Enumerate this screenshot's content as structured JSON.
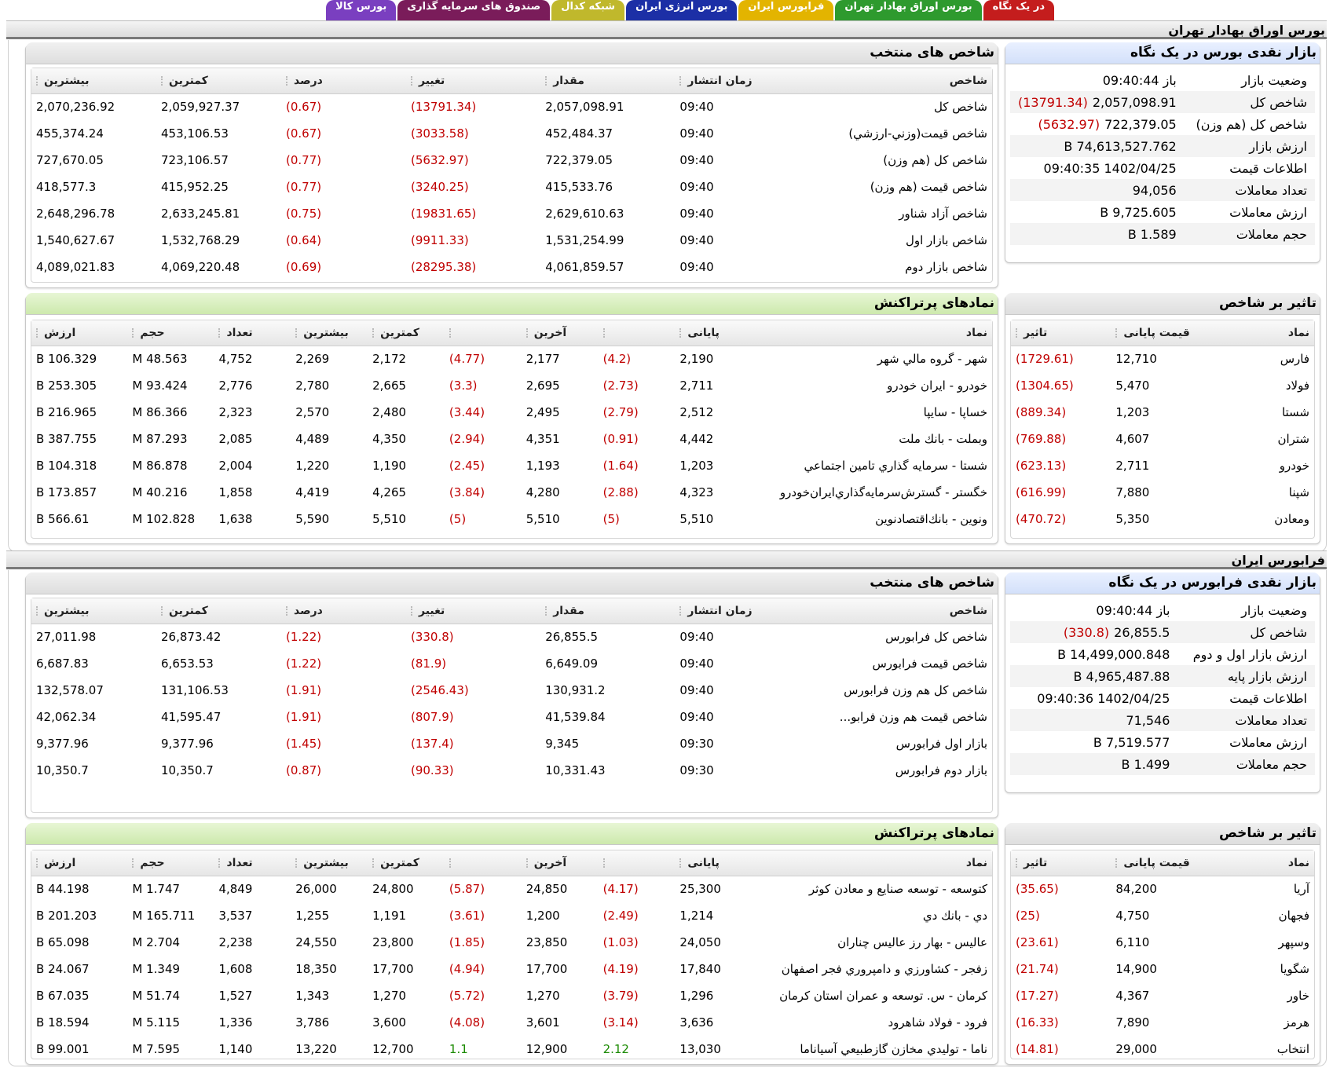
{
  "tabs": [
    {
      "label": "در یک نگاه",
      "color": "#c41d1d"
    },
    {
      "label": "بورس اوراق بهادار تهران",
      "color": "#2e9a2e"
    },
    {
      "label": "فرابورس ایران",
      "color": "#e3b400"
    },
    {
      "label": "بورس انرژی ایران",
      "color": "#1c2fa6"
    },
    {
      "label": "شبکه کدال",
      "color": "#c0b82c"
    },
    {
      "label": "صندوق های سرمایه گذاری",
      "color": "#7a1c5a"
    },
    {
      "label": "بورس کالا",
      "color": "#7a3fc0"
    }
  ],
  "tse": {
    "section_title": "بورس اوراق بهادار تهران",
    "glance": {
      "title": "بازار نقدی بورس در یک نگاه",
      "rows": [
        {
          "k": "وضعیت بازار",
          "v": "باز 09:40:44"
        },
        {
          "k": "شاخص کل",
          "v": "2,057,098.91",
          "n": "(13791.34)"
        },
        {
          "k": "شاخص کل (هم وزن)",
          "v": "722,379.05",
          "n": "(5632.97)"
        },
        {
          "k": "ارزش بازار",
          "v": "74,613,527.762 B"
        },
        {
          "k": "اطلاعات قیمت",
          "v": "1402/04/25 09:40:35"
        },
        {
          "k": "تعداد معاملات",
          "v": "94,056"
        },
        {
          "k": "ارزش معاملات",
          "v": "9,725.605 B"
        },
        {
          "k": "حجم معاملات",
          "v": "1.589 B"
        }
      ]
    },
    "indices": {
      "title": "شاخص های منتخب",
      "headers": [
        "شاخص",
        "زمان انتشار",
        "مقدار",
        "تغییر",
        "درصد",
        "کمترین",
        "بیشترین"
      ],
      "rows": [
        [
          "شاخص کل",
          "09:40",
          "2,057,098.91",
          "(13791.34)",
          "(0.67)",
          "2,059,927.37",
          "2,070,236.92"
        ],
        [
          "شاخص قيمت(وزني-ارزشي)",
          "09:40",
          "452,484.37",
          "(3033.58)",
          "(0.67)",
          "453,106.53",
          "455,374.24"
        ],
        [
          "شاخص کل (هم وزن)",
          "09:40",
          "722,379.05",
          "(5632.97)",
          "(0.77)",
          "723,106.57",
          "727,670.05"
        ],
        [
          "شاخص قيمت (هم وزن)",
          "09:40",
          "415,533.76",
          "(3240.25)",
          "(0.77)",
          "415,952.25",
          "418,577.3"
        ],
        [
          "شاخص آزاد شناور",
          "09:40",
          "2,629,610.63",
          "(19831.65)",
          "(0.75)",
          "2,633,245.81",
          "2,648,296.78"
        ],
        [
          "شاخص بازار اول",
          "09:40",
          "1,531,254.99",
          "(9911.33)",
          "(0.64)",
          "1,532,768.29",
          "1,540,627.67"
        ],
        [
          "شاخص بازار دوم",
          "09:40",
          "4,061,859.57",
          "(28295.38)",
          "(0.69)",
          "4,069,220.48",
          "4,089,021.83"
        ]
      ]
    },
    "impact": {
      "title": "تاثیر بر شاخص",
      "headers": [
        "نماد",
        "قیمت پایانی",
        "تاثیر"
      ],
      "rows": [
        [
          "فارس",
          "12,710",
          "(1729.61)"
        ],
        [
          "فولاد",
          "5,470",
          "(1304.65)"
        ],
        [
          "شستا",
          "1,203",
          "(889.34)"
        ],
        [
          "شتران",
          "4,607",
          "(769.88)"
        ],
        [
          "خودرو",
          "2,711",
          "(623.13)"
        ],
        [
          "شپنا",
          "7,880",
          "(616.99)"
        ],
        [
          "ومعادن",
          "5,350",
          "(470.72)"
        ]
      ]
    },
    "active": {
      "title": "نمادهای پرتراکنش",
      "headers": [
        "نماد",
        "پایانی",
        "",
        "آخرین",
        "",
        "کمترین",
        "بیشترین",
        "تعداد",
        "حجم",
        "ارزش"
      ],
      "rows": [
        [
          "شهر - گروه مالي شهر",
          "2,190",
          "(4.2)",
          "2,177",
          "(4.77)",
          "2,172",
          "2,269",
          "4,752",
          "48.563 M",
          "106.329 B"
        ],
        [
          "خودرو - ايران خودرو",
          "2,711",
          "(2.73)",
          "2,695",
          "(3.3)",
          "2,665",
          "2,780",
          "2,776",
          "93.424 M",
          "253.305 B"
        ],
        [
          "خساپا - سايپا",
          "2,512",
          "(2.79)",
          "2,495",
          "(3.44)",
          "2,480",
          "2,570",
          "2,323",
          "86.366 M",
          "216.965 B"
        ],
        [
          "وبملت - بانك ملت",
          "4,442",
          "(0.91)",
          "4,351",
          "(2.94)",
          "4,350",
          "4,489",
          "2,085",
          "87.293 M",
          "387.755 B"
        ],
        [
          "شستا - سرمايه گذاري تامين اجتماعي",
          "1,203",
          "(1.64)",
          "1,193",
          "(2.45)",
          "1,190",
          "1,220",
          "2,004",
          "86.878 M",
          "104.318 B"
        ],
        [
          "خگستر - گسترش‌سرمايه‌گذاري‌ايران‌خودرو",
          "4,323",
          "(2.88)",
          "4,280",
          "(3.84)",
          "4,265",
          "4,419",
          "1,858",
          "40.216 M",
          "173.857 B"
        ],
        [
          "ونوين - بانك‌اقتصادنوين",
          "5,510",
          "(5)",
          "5,510",
          "(5)",
          "5,510",
          "5,590",
          "1,638",
          "102.828 M",
          "566.61 B"
        ]
      ]
    }
  },
  "ifb": {
    "section_title": "فرابورس ایران",
    "glance": {
      "title": "بازار نقدی فرابورس در یک نگاه",
      "rows": [
        {
          "k": "وضعیت بازار",
          "v": "باز 09:40:44"
        },
        {
          "k": "شاخص کل",
          "v": "26,855.5",
          "n": "(330.8)"
        },
        {
          "k": "ارزش بازار اول و دوم",
          "v": "14,499,000.848 B"
        },
        {
          "k": "ارزش بازار پایه",
          "v": "4,965,487.88 B"
        },
        {
          "k": "اطلاعات قیمت",
          "v": "1402/04/25 09:40:36"
        },
        {
          "k": "تعداد معاملات",
          "v": "71,546"
        },
        {
          "k": "ارزش معاملات",
          "v": "7,519.577 B"
        },
        {
          "k": "حجم معاملات",
          "v": "1.499 B"
        }
      ]
    },
    "indices": {
      "title": "شاخص های منتخب",
      "headers": [
        "شاخص",
        "زمان انتشار",
        "مقدار",
        "تغییر",
        "درصد",
        "کمترین",
        "بیشترین"
      ],
      "rows": [
        [
          "شاخص کل فرابورس",
          "09:40",
          "26,855.5",
          "(330.8)",
          "(1.22)",
          "26,873.42",
          "27,011.98"
        ],
        [
          "شاخص قیمت فرابورس",
          "09:40",
          "6,649.09",
          "(81.9)",
          "(1.22)",
          "6,653.53",
          "6,687.83"
        ],
        [
          "شاخص کل هم وزن فرابورس",
          "09:40",
          "130,931.2",
          "(2546.43)",
          "(1.91)",
          "131,106.53",
          "132,578.07"
        ],
        [
          "شاخص قیمت هم وزن فرابو...",
          "09:40",
          "41,539.84",
          "(807.9)",
          "(1.91)",
          "41,595.47",
          "42,062.34"
        ],
        [
          "بازار اول فرابورس",
          "09:30",
          "9,345",
          "(137.4)",
          "(1.45)",
          "9,377.96",
          "9,377.96"
        ],
        [
          "بازار دوم فرابورس",
          "09:30",
          "10,331.43",
          "(90.33)",
          "(0.87)",
          "10,350.7",
          "10,350.7"
        ]
      ]
    },
    "impact": {
      "title": "تاثیر بر شاخص",
      "headers": [
        "نماد",
        "قیمت پایانی",
        "تاثیر"
      ],
      "rows": [
        [
          "آريا",
          "84,200",
          "(35.65)"
        ],
        [
          "فجهان",
          "4,750",
          "(25)"
        ],
        [
          "وسپهر",
          "6,110",
          "(23.61)"
        ],
        [
          "شگويا",
          "14,900",
          "(21.74)"
        ],
        [
          "خاور",
          "4,367",
          "(17.27)"
        ],
        [
          "هرمز",
          "7,890",
          "(16.33)"
        ],
        [
          "انتخاب",
          "29,000",
          "(14.81)"
        ]
      ]
    },
    "active": {
      "title": "نمادهای پرتراکنش",
      "headers": [
        "نماد",
        "پایانی",
        "",
        "آخرین",
        "",
        "کمترین",
        "بیشترین",
        "تعداد",
        "حجم",
        "ارزش"
      ],
      "rows": [
        [
          "كتوسعه - توسعه صنايع و معادن كوثر",
          "25,300",
          "(4.17)",
          "24,850",
          "(5.87)",
          "24,800",
          "26,000",
          "4,849",
          "1.747 M",
          "44.198 B"
        ],
        [
          "دي - بانك دي",
          "1,214",
          "(2.49)",
          "1,200",
          "(3.61)",
          "1,191",
          "1,255",
          "3,537",
          "165.711 M",
          "201.203 B"
        ],
        [
          "عاليس - بهار رز عاليس چناران",
          "24,050",
          "(1.03)",
          "23,850",
          "(1.85)",
          "23,800",
          "24,550",
          "2,238",
          "2.704 M",
          "65.098 B"
        ],
        [
          "زفجر - كشاورزي و دامپروري فجر اصفهان",
          "17,840",
          "(4.19)",
          "17,700",
          "(4.94)",
          "17,700",
          "18,350",
          "1,608",
          "1.349 M",
          "24.067 B"
        ],
        [
          "كرمان - س. توسعه و عمران استان كرمان",
          "1,296",
          "(3.79)",
          "1,270",
          "(5.72)",
          "1,270",
          "1,343",
          "1,527",
          "51.74 M",
          "67.035 B"
        ],
        [
          "فرود - فولاد شاهرود",
          "3,636",
          "(3.14)",
          "3,601",
          "(4.08)",
          "3,600",
          "3,786",
          "1,336",
          "5.115 M",
          "18.594 B"
        ],
        [
          "ناما - توليدي مخازن گازطبيعي آسيا‌ناما",
          "13,030",
          "2.12",
          "12,900",
          "1.1",
          "12,700",
          "13,220",
          "1,140",
          "7.595 M",
          "99.001 B"
        ]
      ]
    }
  }
}
